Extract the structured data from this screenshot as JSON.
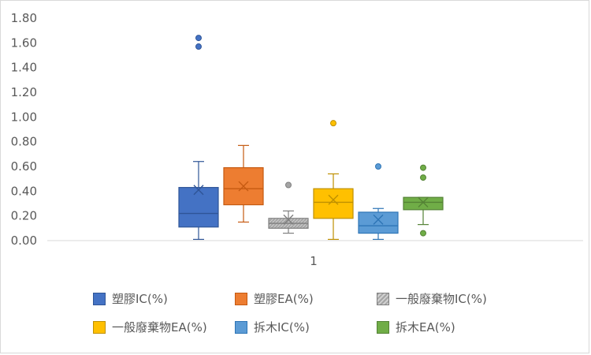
{
  "chart_data": {
    "type": "boxplot",
    "categories": [
      "1"
    ],
    "ylim": [
      0,
      1.8
    ],
    "yticks": [
      "0.00",
      "0.20",
      "0.40",
      "0.60",
      "0.80",
      "1.00",
      "1.20",
      "1.40",
      "1.60",
      "1.80"
    ],
    "grid": false,
    "legend_position": "bottom",
    "series": [
      {
        "name": "塑膠IC(%)",
        "color": "#4472c4",
        "edge": "#2f5597",
        "min": 0.01,
        "q1": 0.11,
        "median": 0.22,
        "q3": 0.43,
        "max": 0.64,
        "mean": 0.41,
        "outliers": [
          1.57,
          1.64
        ]
      },
      {
        "name": "塑膠EA(%)",
        "color": "#ed7d31",
        "edge": "#c55a11",
        "min": 0.15,
        "q1": 0.29,
        "median": 0.42,
        "q3": 0.59,
        "max": 0.77,
        "mean": 0.44,
        "outliers": []
      },
      {
        "name": "一般廢棄物IC(%)",
        "color": "#a5a5a5",
        "edge": "#7f7f7f",
        "pattern": true,
        "min": 0.06,
        "q1": 0.1,
        "median": 0.14,
        "q3": 0.18,
        "max": 0.24,
        "mean": 0.17,
        "outliers": [
          0.45
        ]
      },
      {
        "name": "一般廢棄物EA(%)",
        "color": "#ffc000",
        "edge": "#bf9000",
        "min": 0.01,
        "q1": 0.18,
        "median": 0.31,
        "q3": 0.42,
        "max": 0.54,
        "mean": 0.33,
        "outliers": [
          0.95
        ]
      },
      {
        "name": "拆木IC(%)",
        "color": "#5b9bd5",
        "edge": "#2e75b6",
        "min": 0.01,
        "q1": 0.06,
        "median": 0.12,
        "q3": 0.23,
        "max": 0.26,
        "mean": 0.17,
        "outliers": [
          0.6
        ]
      },
      {
        "name": "拆木EA(%)",
        "color": "#70ad47",
        "edge": "#548235",
        "min": 0.13,
        "q1": 0.25,
        "median": 0.31,
        "q3": 0.35,
        "max": 0.35,
        "mean": 0.31,
        "outliers": [
          0.06,
          0.51,
          0.59
        ]
      }
    ]
  }
}
